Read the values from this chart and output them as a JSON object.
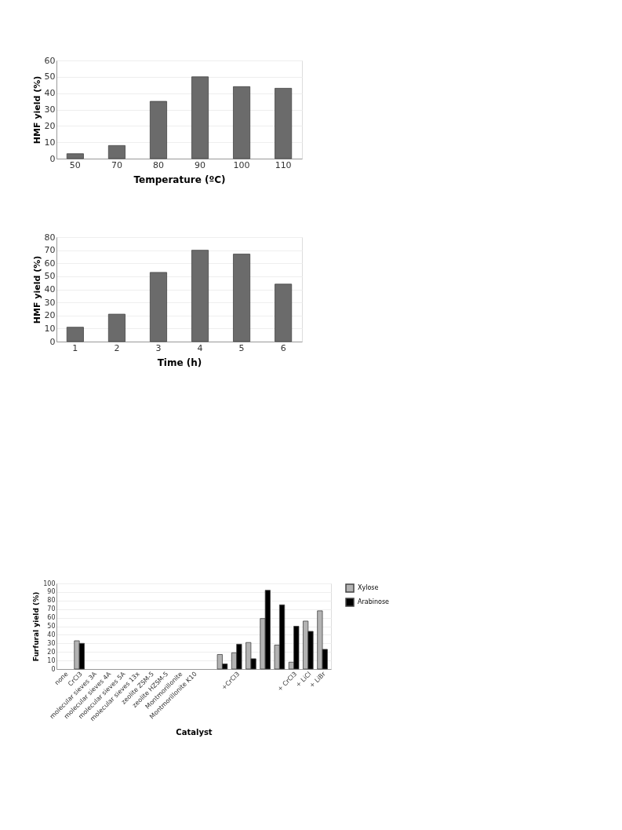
{
  "chart_data": [
    {
      "type": "bar",
      "xlabel": "Temperature (ºC)",
      "ylabel": "HMF yield (%)",
      "categories": [
        "50",
        "70",
        "80",
        "90",
        "100",
        "110"
      ],
      "values": [
        3,
        8,
        35,
        50,
        44,
        43
      ],
      "color": "#6b6b6b",
      "ylim": [
        0,
        60
      ],
      "yticks": [
        0,
        10,
        20,
        30,
        40,
        50,
        60
      ],
      "grid": "y"
    },
    {
      "type": "bar",
      "xlabel": "Time (h)",
      "ylabel": "HMF yield (%)",
      "categories": [
        "1",
        "2",
        "3",
        "4",
        "5",
        "6"
      ],
      "values": [
        11,
        21,
        53,
        70,
        67,
        44
      ],
      "color": "#6b6b6b",
      "ylim": [
        0,
        80
      ],
      "yticks": [
        0,
        10,
        20,
        30,
        40,
        50,
        60,
        70,
        80
      ],
      "grid": "y"
    },
    {
      "type": "bar",
      "xlabel": "Catalyst",
      "ylabel": "Furfural yield (%)",
      "categories": [
        "none",
        "CrCl3",
        "molecular sieves 3A",
        "molecular sieves 4A",
        "molecular sieves 5A",
        "molecular sieves 13x",
        "zeolite ZSM-5",
        "zeolite HZSM-5",
        "Montmorillonite",
        "Montmorillonite K10",
        null,
        null,
        "+CrCl3",
        null,
        null,
        null,
        "+ CrCl3",
        "+ LiCl",
        "+ LiBr"
      ],
      "series": [
        {
          "name": "Xylose",
          "color": "#b3b3b3",
          "values": [
            null,
            33,
            null,
            null,
            null,
            null,
            null,
            null,
            null,
            null,
            null,
            17,
            19,
            31,
            59,
            28,
            8,
            56,
            68
          ]
        },
        {
          "name": "Arabinose",
          "color": "#000000",
          "values": [
            null,
            30,
            null,
            null,
            null,
            null,
            null,
            null,
            null,
            null,
            null,
            6,
            29,
            12,
            92,
            75,
            50,
            44,
            23
          ]
        }
      ],
      "ylim": [
        0,
        100
      ],
      "yticks": [
        0,
        10,
        20,
        30,
        40,
        50,
        60,
        70,
        80,
        90,
        100
      ],
      "grid": "y",
      "legend": "right"
    }
  ]
}
